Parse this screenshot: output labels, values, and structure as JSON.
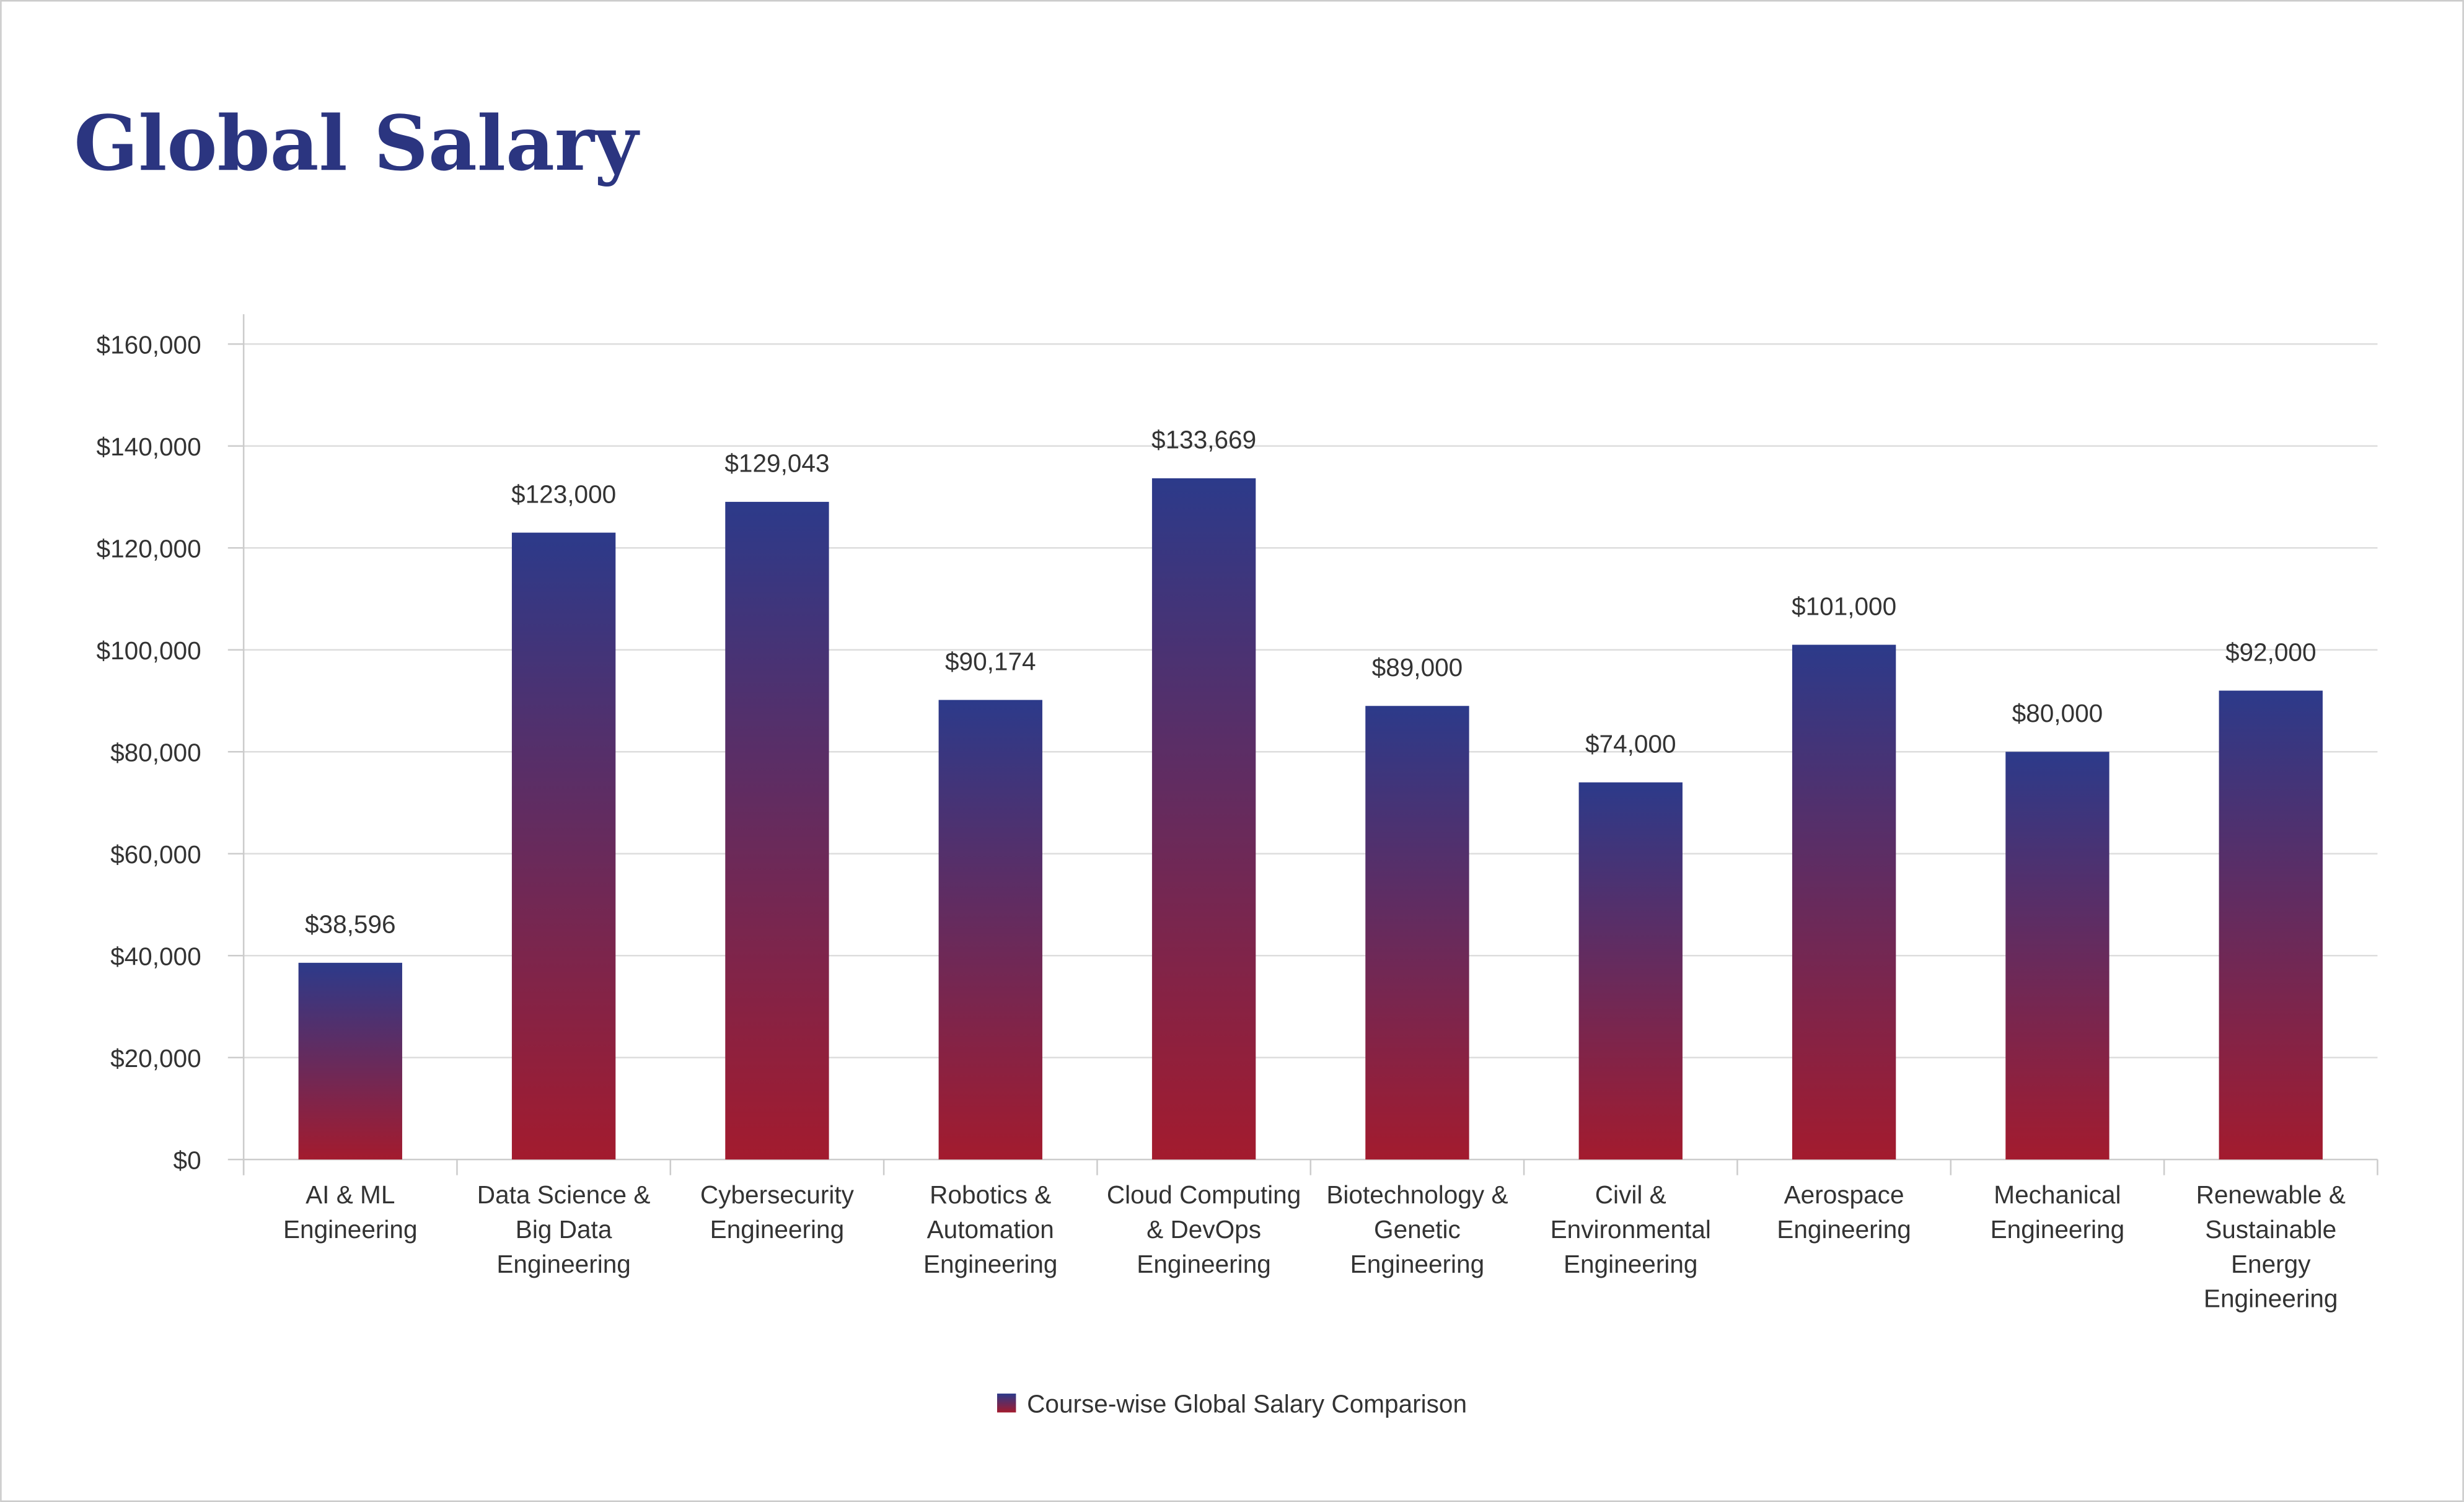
{
  "chart_data": {
    "type": "bar",
    "title": "Global Salary",
    "categories": [
      "AI & ML Engineering",
      "Data Science & Big Data Engineering",
      "Cybersecurity Engineering",
      "Robotics & Automation Engineering",
      "Cloud Computing & DevOps Engineering",
      "Biotechnology & Genetic Engineering",
      "Civil & Environmental Engineering",
      "Aerospace Engineering",
      "Mechanical Engineering",
      "Renewable & Sustainable Energy Engineering"
    ],
    "series": [
      {
        "name": "Course-wise Global Salary Comparison",
        "gradient": [
          "#2c3a8a",
          "#a31b2e"
        ],
        "values": [
          38596,
          123000,
          129043,
          90174,
          133669,
          89000,
          74000,
          101000,
          80000,
          92000
        ],
        "value_labels": [
          "$38,596",
          "$123,000",
          "$129,043",
          "$90,174",
          "$133,669",
          "$89,000",
          "$74,000",
          "$101,000",
          "$80,000",
          "$92,000"
        ]
      }
    ],
    "ylim": [
      0,
      160000
    ],
    "yticks": [
      {
        "value": 0,
        "label": "$0"
      },
      {
        "value": 20000,
        "label": "$20,000"
      },
      {
        "value": 40000,
        "label": "$40,000"
      },
      {
        "value": 60000,
        "label": "$60,000"
      },
      {
        "value": 80000,
        "label": "$80,000"
      },
      {
        "value": 100000,
        "label": "$100,000"
      },
      {
        "value": 120000,
        "label": "$120,000"
      },
      {
        "value": 140000,
        "label": "$140,000"
      },
      {
        "value": 160000,
        "label": "$160,000"
      }
    ],
    "grid": true,
    "legend": "bottom"
  }
}
